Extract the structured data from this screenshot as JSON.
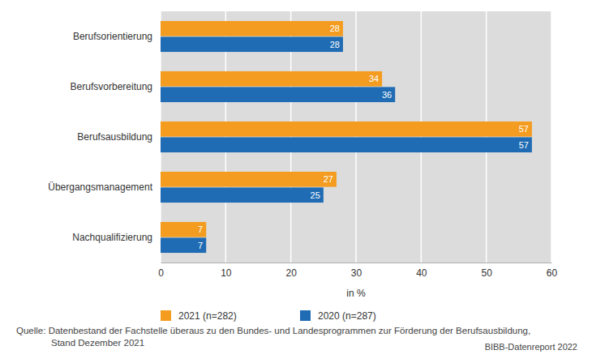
{
  "chart_data": {
    "type": "bar",
    "orientation": "horizontal",
    "categories": [
      "Berufsorientierung",
      "Berufsvorbereitung",
      "Berufsausbildung",
      "Übergangsmanagement",
      "Nachqualifizierung"
    ],
    "series": [
      {
        "name": "2021 (n=282)",
        "color": "#f39c1f",
        "values": [
          28,
          34,
          57,
          27,
          7
        ]
      },
      {
        "name": "2020 (n=287)",
        "color": "#1f6cb4",
        "values": [
          28,
          36,
          57,
          25,
          7
        ]
      }
    ],
    "xlabel": "in %",
    "xlim": [
      0,
      60
    ],
    "xticks": [
      0,
      10,
      20,
      30,
      40,
      50,
      60
    ],
    "grid": true,
    "data_labels": true,
    "legend": "bottom-left",
    "annotations": [
      "Quelle: Datenbestand der Fachstelle überaus zu den Bundes- und Landesprogrammen zur Förderung der Berufsausbildung,",
      "Stand Dezember 2021",
      "BIBB-Datenreport 2022"
    ]
  }
}
